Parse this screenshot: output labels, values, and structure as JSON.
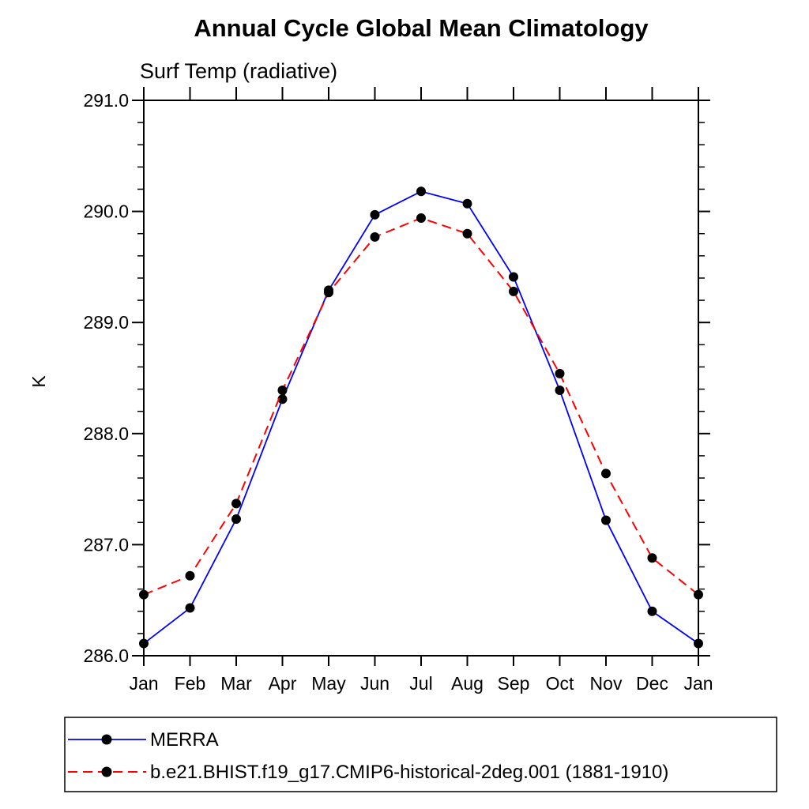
{
  "page": {
    "background": "#ffffff"
  },
  "chart_data": {
    "type": "line",
    "title": "Annual Cycle Global Mean Climatology",
    "subtitle": "Surf Temp (radiative)",
    "ylabel": "K",
    "xlabel": "",
    "x_tick_labels": [
      "Jan",
      "Feb",
      "Mar",
      "Apr",
      "May",
      "Jun",
      "Jul",
      "Aug",
      "Sep",
      "Oct",
      "Nov",
      "Dec",
      "Jan"
    ],
    "ylim": [
      286.0,
      291.0
    ],
    "y_major_ticks": [
      286.0,
      287.0,
      288.0,
      289.0,
      290.0,
      291.0
    ],
    "y_major_tick_labels": [
      "286.0",
      "287.0",
      "288.0",
      "289.0",
      "290.0",
      "291.0"
    ],
    "y_minor_step": 0.2,
    "grid": false,
    "frame": "box-with-outward-ticks",
    "legend_position": "bottom-left-boxed",
    "marker": "filled-circle",
    "marker_color": "#000000",
    "axis_color": "#000000",
    "series": [
      {
        "name": "MERRA",
        "color": "#0000ff",
        "line_style": "solid",
        "values": [
          286.11,
          286.43,
          287.23,
          288.31,
          289.29,
          289.97,
          290.18,
          290.07,
          289.41,
          288.39,
          287.22,
          286.4,
          286.11
        ]
      },
      {
        "name": "b.e21.BHIST.f19_g17.CMIP6-historical-2deg.001 (1881-1910)",
        "color": "#ff0000",
        "line_style": "dashed",
        "values": [
          286.55,
          286.72,
          287.37,
          288.39,
          289.27,
          289.77,
          289.94,
          289.8,
          289.28,
          288.54,
          287.64,
          286.88,
          286.55
        ]
      }
    ]
  }
}
